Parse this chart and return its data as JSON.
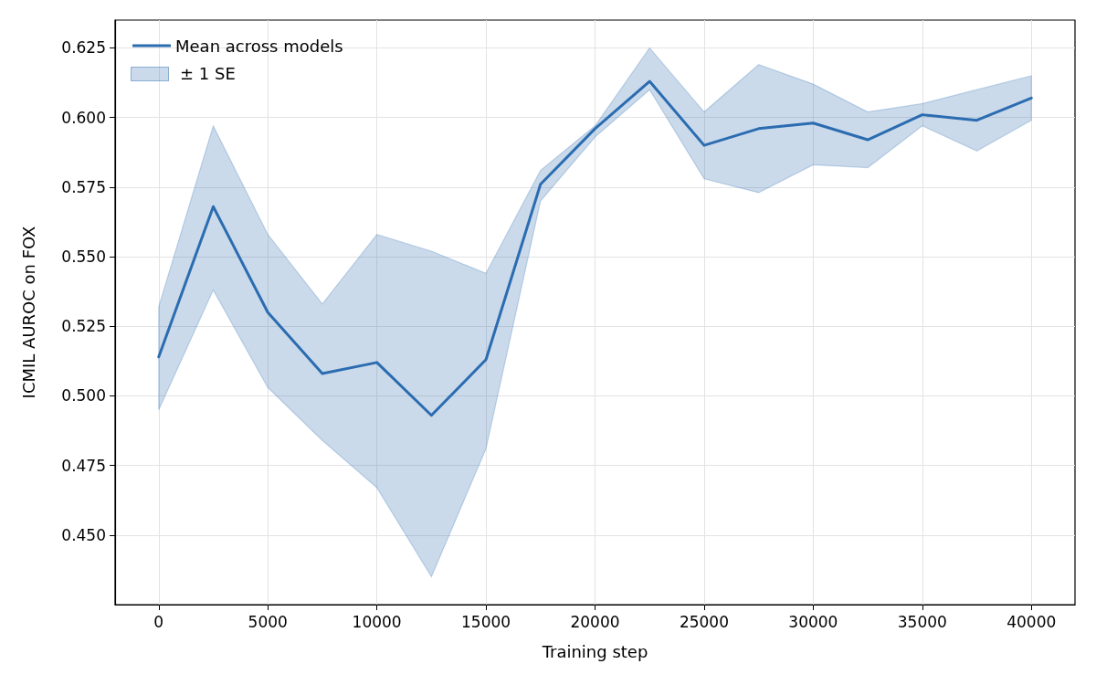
{
  "chart_data": {
    "type": "line",
    "xlabel": "Training step",
    "ylabel": "ICMIL AUROC on FOX",
    "x": [
      0,
      2500,
      5000,
      7500,
      10000,
      12500,
      15000,
      17500,
      20000,
      22500,
      25000,
      27500,
      30000,
      32500,
      35000,
      37500,
      40000
    ],
    "series": [
      {
        "name": "Mean across models",
        "color": "#2b6cb0",
        "values": [
          0.514,
          0.568,
          0.53,
          0.508,
          0.512,
          0.493,
          0.513,
          0.576,
          0.596,
          0.613,
          0.59,
          0.596,
          0.598,
          0.592,
          0.601,
          0.599,
          0.607
        ],
        "lower": [
          0.495,
          0.538,
          0.503,
          0.484,
          0.467,
          0.435,
          0.481,
          0.57,
          0.593,
          0.61,
          0.578,
          0.573,
          0.583,
          0.582,
          0.597,
          0.588,
          0.599
        ],
        "upper": [
          0.532,
          0.597,
          0.558,
          0.533,
          0.558,
          0.552,
          0.544,
          0.581,
          0.597,
          0.625,
          0.602,
          0.619,
          0.612,
          0.602,
          0.605,
          0.61,
          0.615
        ]
      }
    ],
    "annotations": [
      "± 1 SE"
    ],
    "xlim": [
      -2000,
      42000
    ],
    "xticks": [
      0,
      5000,
      10000,
      15000,
      20000,
      25000,
      30000,
      35000,
      40000
    ],
    "ylim": [
      0.425,
      0.635
    ],
    "yticks": [
      {
        "value": 0.45,
        "label": "0.450"
      },
      0.475,
      {
        "value": 0.5,
        "label": "0.500"
      },
      0.525,
      {
        "value": 0.55,
        "label": "0.550"
      },
      0.575,
      {
        "value": 0.6,
        "label": "0.600"
      },
      0.625
    ],
    "grid": true,
    "legend": "top left",
    "marker": "none",
    "line_style": "solid"
  }
}
